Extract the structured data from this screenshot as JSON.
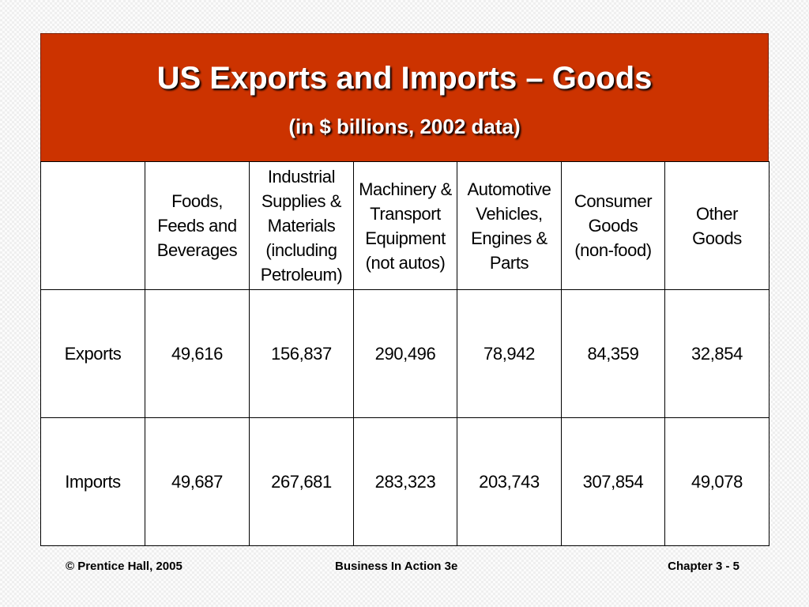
{
  "slide": {
    "title": "US Exports and Imports – Goods",
    "subtitle": "(in $ billions, 2002 data)"
  },
  "table": {
    "headers": [
      "",
      "Foods,\nFeeds and\nBeverages",
      "Industrial\nSupplies &\nMaterials\n(including\nPetroleum)",
      "Machinery &\nTransport\nEquipment\n(not autos)",
      "Automotive\nVehicles,\nEngines &\nParts",
      "Consumer\nGoods\n(non-food)",
      "Other\nGoods"
    ],
    "rows": [
      {
        "label": "Exports",
        "values": [
          "49,616",
          "156,837",
          "290,496",
          "78,942",
          "84,359",
          "32,854"
        ]
      },
      {
        "label": "Imports",
        "values": [
          "49,687",
          "267,681",
          "283,323",
          "203,743",
          "307,854",
          "49,078"
        ]
      }
    ]
  },
  "footer": {
    "left": "© Prentice Hall, 2005",
    "center": "Business In Action 3e",
    "right": "Chapter 3 - 5"
  },
  "colors": {
    "title_band": "#cc3300",
    "background": "#efefef",
    "table_background": "#ffffff"
  }
}
